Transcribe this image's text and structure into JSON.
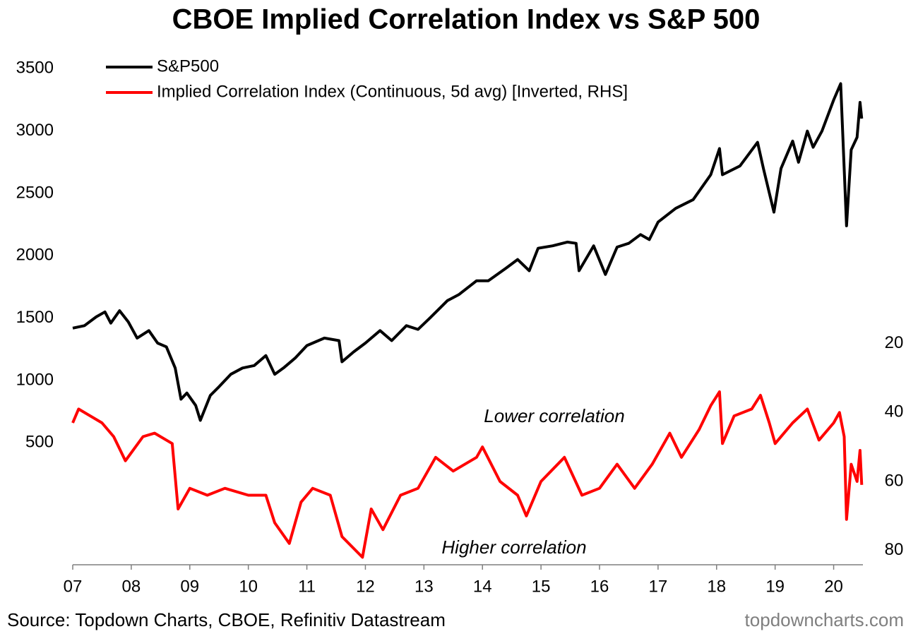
{
  "chart_data": {
    "type": "line",
    "title": "CBOE Implied Correlation Index vs S&P 500",
    "source": "Source: Topdown Charts, CBOE, Refinitiv Datastream",
    "brand": "topdowncharts.com",
    "annotations": [
      "Lower correlation",
      "Higher correlation"
    ],
    "xlim": [
      2007,
      2020.5
    ],
    "xticks": [
      {
        "value": 2007,
        "label": "07"
      },
      {
        "value": 2008,
        "label": "08"
      },
      {
        "value": 2009,
        "label": "09"
      },
      {
        "value": 2010,
        "label": "10"
      },
      {
        "value": 2011,
        "label": "11"
      },
      {
        "value": 2012,
        "label": "12"
      },
      {
        "value": 2013,
        "label": "13"
      },
      {
        "value": 2014,
        "label": "14"
      },
      {
        "value": 2015,
        "label": "15"
      },
      {
        "value": 2016,
        "label": "16"
      },
      {
        "value": 2017,
        "label": "17"
      },
      {
        "value": 2018,
        "label": "18"
      },
      {
        "value": 2019,
        "label": "19"
      },
      {
        "value": 2020,
        "label": "20"
      }
    ],
    "ylim": [
      -500,
      3700
    ],
    "yticks": [
      500,
      1000,
      1500,
      2000,
      2500,
      3000,
      3500
    ],
    "y2lim": [
      -67,
      85
    ],
    "y2_inverted": true,
    "y2ticks": [
      20,
      40,
      60,
      80
    ],
    "series": [
      {
        "name": "S&P500",
        "color": "#000000",
        "x": [
          2007.0,
          2007.2,
          2007.4,
          2007.55,
          2007.65,
          2007.8,
          2007.95,
          2008.1,
          2008.3,
          2008.45,
          2008.6,
          2008.75,
          2008.85,
          2008.95,
          2009.1,
          2009.18,
          2009.35,
          2009.5,
          2009.7,
          2009.9,
          2010.1,
          2010.3,
          2010.45,
          2010.6,
          2010.8,
          2011.0,
          2011.3,
          2011.55,
          2011.6,
          2011.8,
          2012.0,
          2012.25,
          2012.45,
          2012.7,
          2012.9,
          2013.1,
          2013.4,
          2013.6,
          2013.9,
          2014.1,
          2014.4,
          2014.6,
          2014.8,
          2014.95,
          2015.2,
          2015.45,
          2015.6,
          2015.65,
          2015.9,
          2016.1,
          2016.3,
          2016.5,
          2016.7,
          2016.85,
          2017.0,
          2017.3,
          2017.6,
          2017.9,
          2018.05,
          2018.1,
          2018.4,
          2018.7,
          2018.8,
          2018.98,
          2019.1,
          2019.3,
          2019.4,
          2019.55,
          2019.65,
          2019.8,
          2020.0,
          2020.12,
          2020.22,
          2020.3,
          2020.4,
          2020.45,
          2020.48
        ],
        "values": [
          1420,
          1440,
          1510,
          1550,
          1460,
          1560,
          1470,
          1340,
          1400,
          1300,
          1270,
          1100,
          850,
          900,
          800,
          680,
          880,
          950,
          1050,
          1100,
          1120,
          1200,
          1050,
          1100,
          1180,
          1280,
          1340,
          1320,
          1150,
          1230,
          1300,
          1400,
          1320,
          1440,
          1410,
          1500,
          1640,
          1690,
          1800,
          1800,
          1900,
          1970,
          1880,
          2060,
          2080,
          2110,
          2100,
          1880,
          2080,
          1850,
          2070,
          2100,
          2170,
          2130,
          2270,
          2380,
          2450,
          2650,
          2860,
          2650,
          2720,
          2910,
          2700,
          2350,
          2700,
          2920,
          2750,
          3000,
          2870,
          3000,
          3250,
          3380,
          2240,
          2850,
          2950,
          3230,
          3100
        ]
      },
      {
        "name": "Implied Correlation Index (Continuous, 5d avg) [Inverted, RHS]",
        "color": "#ff0000",
        "axis": "y2",
        "x": [
          2007.0,
          2007.1,
          2007.5,
          2007.7,
          2007.9,
          2008.2,
          2008.4,
          2008.7,
          2008.8,
          2009.0,
          2009.3,
          2009.6,
          2010.0,
          2010.3,
          2010.45,
          2010.7,
          2010.9,
          2011.1,
          2011.4,
          2011.6,
          2011.95,
          2012.1,
          2012.3,
          2012.6,
          2012.9,
          2013.2,
          2013.5,
          2013.9,
          2014.0,
          2014.3,
          2014.6,
          2014.75,
          2015.0,
          2015.4,
          2015.7,
          2016.0,
          2016.3,
          2016.6,
          2016.9,
          2017.2,
          2017.4,
          2017.7,
          2017.9,
          2018.05,
          2018.1,
          2018.3,
          2018.6,
          2018.75,
          2018.9,
          2019.0,
          2019.3,
          2019.55,
          2019.75,
          2020.0,
          2020.1,
          2020.18,
          2020.22,
          2020.3,
          2020.4,
          2020.45,
          2020.48
        ],
        "values": [
          43,
          39,
          43,
          47,
          54,
          47,
          46,
          49,
          68,
          62,
          64,
          62,
          64,
          64,
          72,
          78,
          66,
          62,
          64,
          76,
          82,
          68,
          74,
          64,
          62,
          53,
          57,
          53,
          50,
          60,
          64,
          70,
          60,
          53,
          64,
          62,
          55,
          62,
          55,
          46,
          53,
          45,
          38,
          34,
          49,
          41,
          39,
          35,
          43,
          49,
          43,
          39,
          48,
          43,
          40,
          47,
          71,
          55,
          60,
          51,
          61
        ]
      }
    ]
  }
}
